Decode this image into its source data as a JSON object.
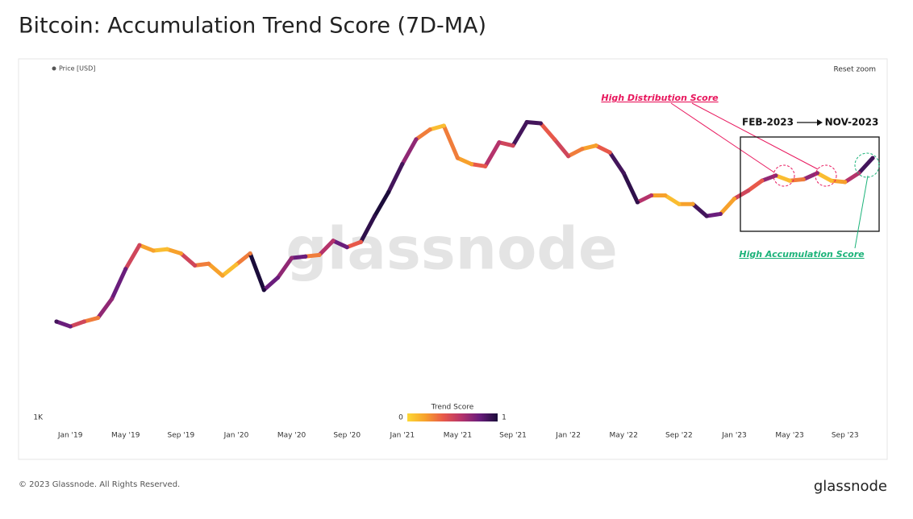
{
  "header": {
    "title": "Bitcoin: Accumulation Trend Score (7D-MA)"
  },
  "chart_data": {
    "type": "line",
    "log_scale": true,
    "x": [
      "2018-12",
      "2019-01",
      "2019-02",
      "2019-03",
      "2019-04",
      "2019-05",
      "2019-06",
      "2019-07",
      "2019-08",
      "2019-09",
      "2019-10",
      "2019-11",
      "2019-12",
      "2020-01",
      "2020-02",
      "2020-03",
      "2020-04",
      "2020-05",
      "2020-06",
      "2020-07",
      "2020-08",
      "2020-09",
      "2020-10",
      "2020-11",
      "2020-12",
      "2021-01",
      "2021-02",
      "2021-03",
      "2021-04",
      "2021-05",
      "2021-06",
      "2021-07",
      "2021-08",
      "2021-09",
      "2021-10",
      "2021-11",
      "2021-12",
      "2022-01",
      "2022-02",
      "2022-03",
      "2022-04",
      "2022-05",
      "2022-06",
      "2022-07",
      "2022-08",
      "2022-09",
      "2022-10",
      "2022-11",
      "2022-12",
      "2023-01",
      "2023-02",
      "2023-03",
      "2023-04",
      "2023-05",
      "2023-06",
      "2023-07",
      "2023-08",
      "2023-09",
      "2023-10",
      "2023-11"
    ],
    "series": [
      {
        "name": "Price [USD]",
        "color": "#555555",
        "values": [
          3800,
          3550,
          3800,
          4000,
          5200,
          7900,
          11000,
          10200,
          10400,
          9800,
          8300,
          8500,
          7200,
          8400,
          9800,
          5900,
          7000,
          9200,
          9400,
          9600,
          11700,
          10700,
          11500,
          16500,
          23000,
          34000,
          48000,
          55000,
          58000,
          37000,
          34000,
          33000,
          46000,
          44000,
          61000,
          60000,
          48000,
          38000,
          42000,
          44000,
          40000,
          30000,
          20000,
          22000,
          22000,
          19500,
          19500,
          16500,
          17000,
          21000,
          23500,
          27000,
          29000,
          27000,
          27500,
          30000,
          27000,
          26500,
          30000,
          37000
        ],
        "trend_score": [
          0.9,
          0.8,
          0.5,
          0.3,
          0.7,
          0.8,
          0.5,
          0.2,
          0.1,
          0.2,
          0.5,
          0.3,
          0.2,
          0.1,
          0.3,
          1.0,
          0.8,
          0.7,
          0.8,
          0.3,
          0.6,
          0.8,
          0.4,
          0.95,
          1.0,
          0.9,
          0.7,
          0.3,
          0.1,
          0.3,
          0.2,
          0.4,
          0.6,
          0.5,
          0.9,
          0.9,
          0.4,
          0.5,
          0.3,
          0.2,
          0.4,
          0.9,
          0.95,
          0.6,
          0.2,
          0.1,
          0.2,
          0.9,
          0.8,
          0.2,
          0.5,
          0.4,
          0.7,
          0.1,
          0.3,
          0.7,
          0.1,
          0.2,
          0.6,
          0.9
        ]
      }
    ],
    "xticks": [
      {
        "value": "2019-01",
        "label": "Jan '19"
      },
      {
        "value": "2019-05",
        "label": "May '19"
      },
      {
        "value": "2019-09",
        "label": "Sep '19"
      },
      {
        "value": "2020-01",
        "label": "Jan '20"
      },
      {
        "value": "2020-05",
        "label": "May '20"
      },
      {
        "value": "2020-09",
        "label": "Sep '20"
      },
      {
        "value": "2021-01",
        "label": "Jan '21"
      },
      {
        "value": "2021-05",
        "label": "May '21"
      },
      {
        "value": "2021-09",
        "label": "Sep '21"
      },
      {
        "value": "2022-01",
        "label": "Jan '22"
      },
      {
        "value": "2022-05",
        "label": "May '22"
      },
      {
        "value": "2022-09",
        "label": "Sep '22"
      },
      {
        "value": "2023-01",
        "label": "Jan '23"
      },
      {
        "value": "2023-05",
        "label": "May '23"
      },
      {
        "value": "2023-09",
        "label": "Sep '23"
      }
    ],
    "ylim": [
      1000,
      115000
    ],
    "yticks": [
      {
        "value": 1000,
        "label": "1K"
      }
    ],
    "colorbar": {
      "title": "Trend Score",
      "range": [
        0,
        1
      ],
      "ticks": [
        0,
        1
      ],
      "colors": [
        "#fdd835",
        "#f7a12c",
        "#e8594a",
        "#b5336b",
        "#6a1d7c",
        "#1b0c3a"
      ]
    },
    "reset_zoom": "Reset zoom",
    "watermark": "glassnode",
    "annotations": {
      "distribution": "High Distribution Score",
      "period_start": "FEB-2023",
      "period_end": "NOV-2023",
      "accumulation": "High Accumulation Score"
    }
  },
  "footer": {
    "copyright": "© 2023 Glassnode. All Rights Reserved.",
    "logo": "glassnode"
  }
}
